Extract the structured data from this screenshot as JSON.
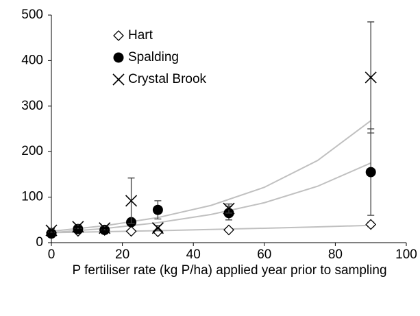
{
  "chart_data": {
    "type": "scatter",
    "x_label": "P fertiliser rate (kg P/ha) applied year prior to sampling",
    "xlim": [
      0,
      100
    ],
    "xticks": [
      0,
      20,
      40,
      60,
      80,
      100
    ],
    "ylim": [
      0,
      500
    ],
    "yticks": [
      0,
      100,
      200,
      300,
      400,
      500
    ],
    "grid": false,
    "legend": "upper left",
    "x": [
      0,
      7.5,
      15,
      22.5,
      30,
      50,
      90
    ],
    "trend_x": [
      0,
      15,
      30,
      45,
      60,
      75,
      90
    ],
    "trend_color": "#c0c0c0",
    "series": [
      {
        "name": "Hart",
        "color": "#000000",
        "marker": "diamond",
        "values": [
          22,
          25,
          27,
          25,
          24,
          28,
          40
        ],
        "errors": [
          3,
          3,
          3,
          3,
          3,
          4,
          5
        ],
        "trend": [
          22,
          24.1,
          26.4,
          28.9,
          31.7,
          34.7,
          38
        ]
      },
      {
        "name": "Spalding",
        "color": "#000000",
        "marker": "circle",
        "values": [
          20,
          30,
          28,
          45,
          72,
          65,
          155
        ],
        "errors": [
          4,
          4,
          4,
          6,
          20,
          15,
          95
        ],
        "trend": [
          22,
          31.1,
          43.9,
          62,
          87.7,
          123.9,
          175
        ]
      },
      {
        "name": "Crystal Brook",
        "color": "#000000",
        "marker": "x",
        "values": [
          27,
          35,
          32,
          92,
          32,
          75,
          363
        ],
        "errors": [
          4,
          4,
          4,
          50,
          6,
          10,
          122
        ],
        "trend": [
          25,
          37.1,
          55.1,
          81.9,
          121.6,
          180.5,
          268
        ]
      }
    ]
  }
}
